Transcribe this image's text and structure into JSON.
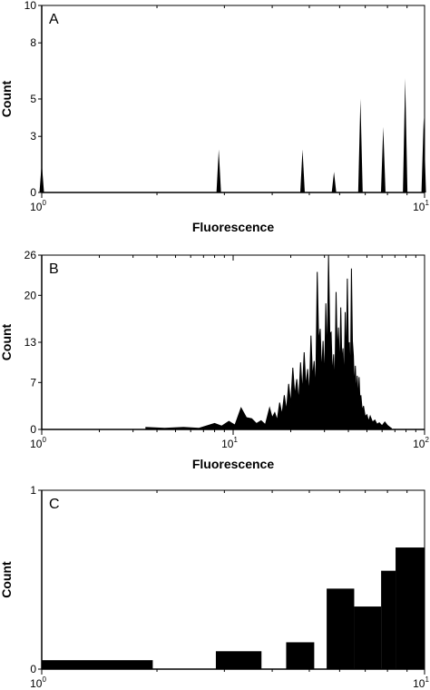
{
  "chart_data": [
    {
      "type": "histogram",
      "panel_label": "A",
      "xlabel": "Fluorescence",
      "ylabel": "Count",
      "x_scale": "log",
      "xlim": [
        1,
        10
      ],
      "ylim": [
        0,
        10
      ],
      "y_ticks": [
        0,
        3,
        5,
        8,
        10
      ],
      "x_tick_labels": [
        {
          "base": "10",
          "exp": "0"
        },
        {
          "base": "10",
          "exp": "1"
        }
      ],
      "grid": false,
      "style": "spikes",
      "spikes": [
        {
          "x": 1.0,
          "count": 1.6
        },
        {
          "x": 2.9,
          "count": 2.3
        },
        {
          "x": 4.8,
          "count": 2.3
        },
        {
          "x": 5.8,
          "count": 1.1
        },
        {
          "x": 6.8,
          "count": 5.0
        },
        {
          "x": 7.8,
          "count": 3.5
        },
        {
          "x": 8.9,
          "count": 6.1
        },
        {
          "x": 9.95,
          "count": 4.0
        }
      ]
    },
    {
      "type": "histogram",
      "panel_label": "B",
      "xlabel": "Fluorescence",
      "ylabel": "Count",
      "x_scale": "log",
      "xlim": [
        1,
        100
      ],
      "ylim": [
        0,
        26
      ],
      "y_ticks": [
        0,
        7,
        13,
        20,
        26
      ],
      "x_tick_labels": [
        {
          "base": "10",
          "exp": "0"
        },
        {
          "base": "10",
          "exp": "1"
        },
        {
          "base": "10",
          "exp": "2"
        }
      ],
      "grid": false,
      "style": "dense",
      "x": [
        3.5,
        5.5,
        8.0,
        9.5,
        11.0,
        12.5,
        14.0,
        15.5,
        16.5,
        17.5,
        18.5,
        19.5,
        20.5,
        21.5,
        22.5,
        23.5,
        24.5,
        25.5,
        26.5,
        27.5,
        28.5,
        29.5,
        30.5,
        31.5,
        32.5,
        33.5,
        34.5,
        35.5,
        36.5,
        37.5,
        38.5,
        39.5,
        40.5,
        41.5,
        42.5,
        43.5,
        44.5,
        45.5,
        46.5,
        48.0,
        50.0,
        52.0,
        55.0,
        58.0,
        62.0,
        66.0
      ],
      "counts": [
        0.3,
        0.3,
        0.9,
        1.2,
        3.2,
        1.6,
        1.3,
        3.2,
        2.5,
        4.0,
        5.1,
        6.8,
        9.2,
        7.5,
        10.0,
        11.5,
        9.0,
        14.0,
        10.2,
        23.5,
        15.0,
        13.2,
        18.8,
        26.0,
        14.5,
        11.2,
        20.5,
        15.2,
        18.2,
        12.1,
        17.5,
        22.5,
        13.0,
        24.0,
        11.0,
        9.5,
        8.0,
        7.8,
        5.1,
        3.5,
        2.2,
        2.0,
        1.4,
        1.0,
        1.1,
        0.3
      ]
    },
    {
      "type": "histogram",
      "panel_label": "C",
      "xlabel": "Fluorescence",
      "ylabel": "Count",
      "x_scale": "log",
      "xlim": [
        1,
        10
      ],
      "ylim": [
        0,
        1
      ],
      "y_ticks": [
        0,
        1
      ],
      "x_tick_labels": [
        {
          "base": "10",
          "exp": "0"
        },
        {
          "base": "10",
          "exp": "1"
        }
      ],
      "grid": false,
      "style": "steps",
      "bins": [
        {
          "x0": 1.0,
          "x1": 1.95,
          "count": 0.05
        },
        {
          "x0": 2.85,
          "x1": 3.75,
          "count": 0.1
        },
        {
          "x0": 4.35,
          "x1": 5.15,
          "count": 0.15
        },
        {
          "x0": 5.55,
          "x1": 6.55,
          "count": 0.45
        },
        {
          "x0": 6.55,
          "x1": 7.7,
          "count": 0.35
        },
        {
          "x0": 7.7,
          "x1": 8.4,
          "count": 0.55
        },
        {
          "x0": 8.4,
          "x1": 10.0,
          "count": 0.68
        }
      ]
    }
  ]
}
